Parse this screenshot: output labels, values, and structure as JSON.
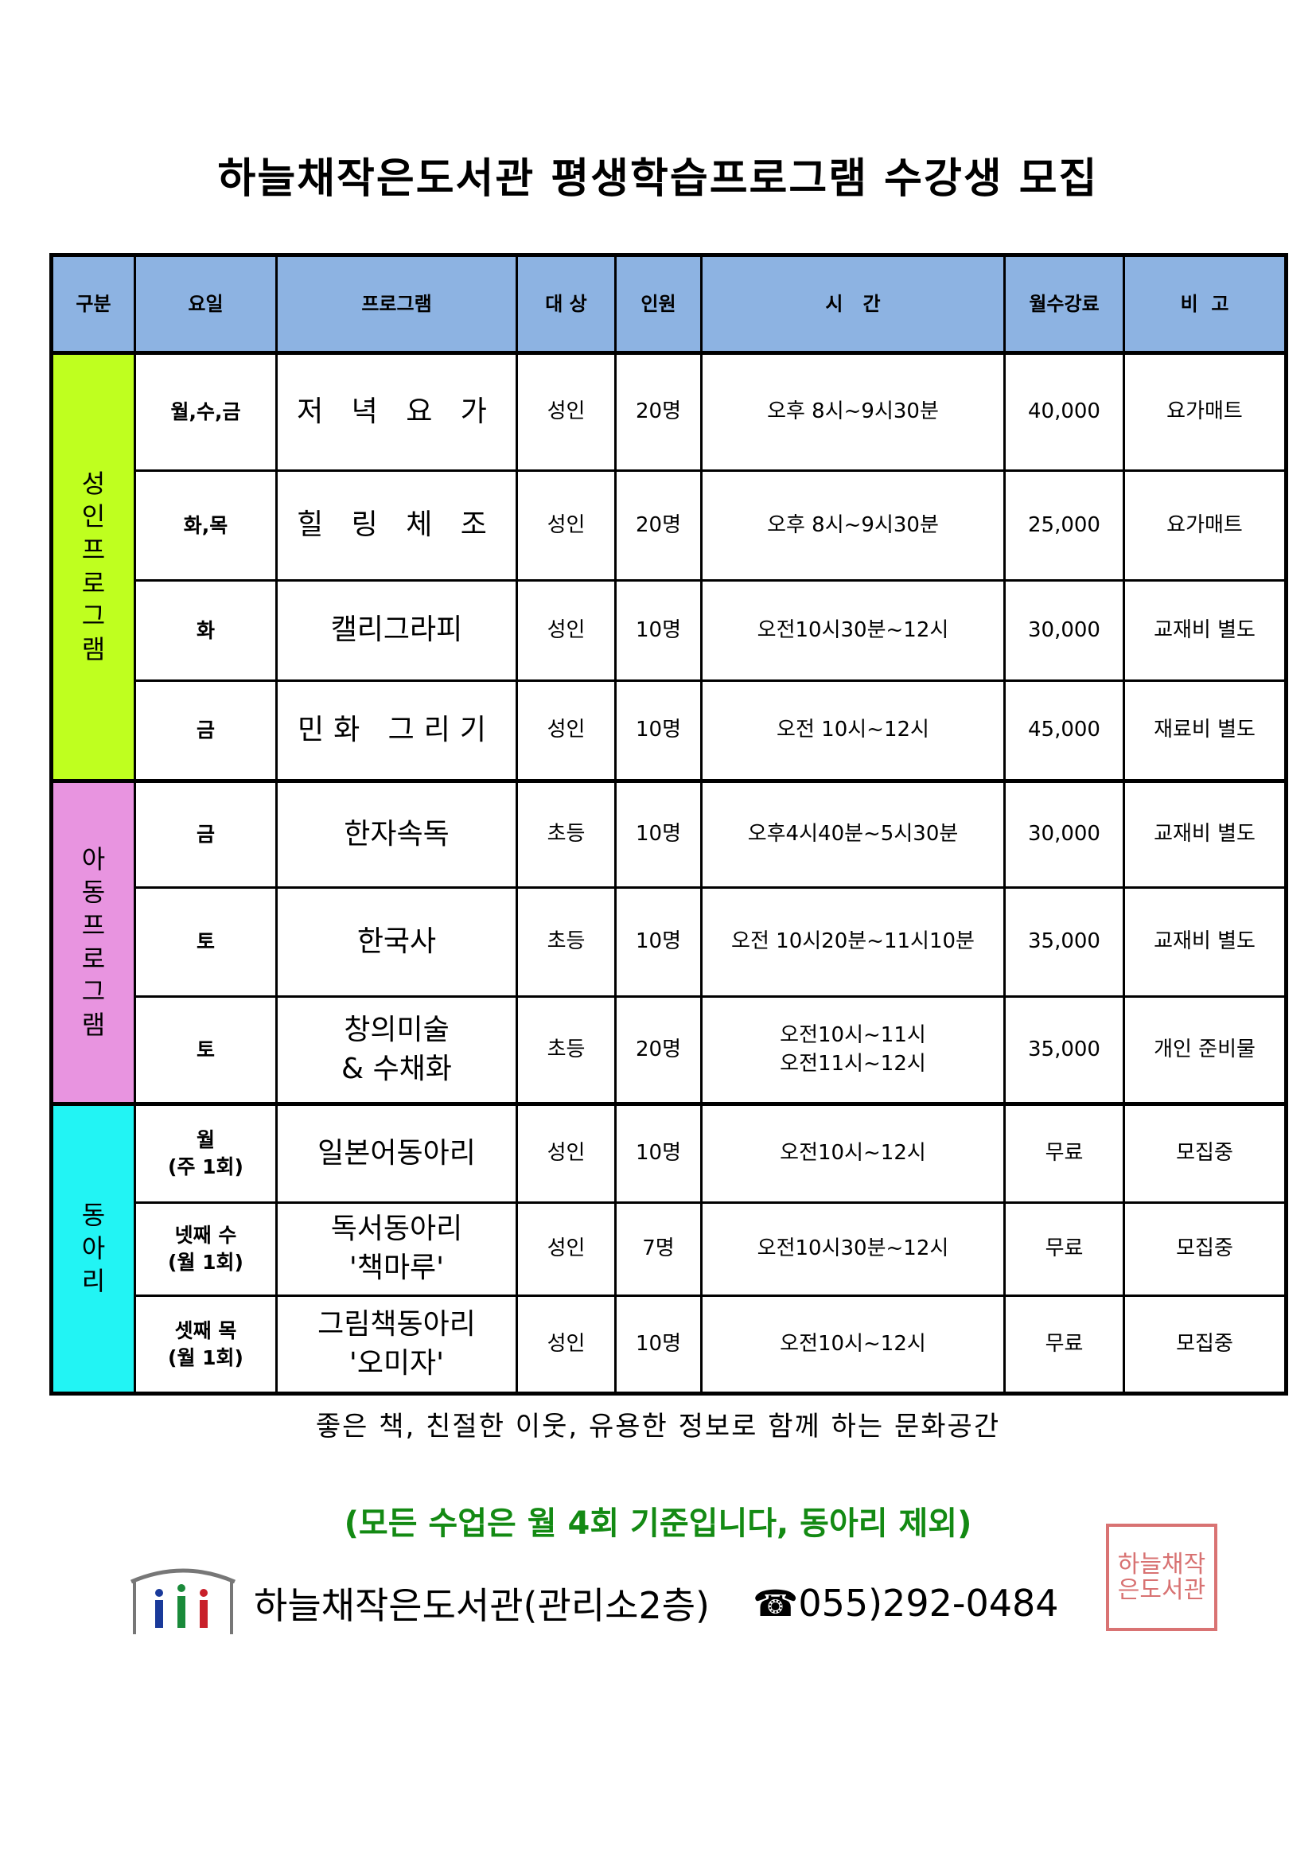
{
  "title": "하늘채작은도서관 평생학습프로그램 수강생 모집",
  "table": {
    "headers": [
      "구분",
      "요일",
      "프로그램",
      "대 상",
      "인원",
      "시   간",
      "월수강료",
      "비  고"
    ],
    "groups": [
      {
        "label": "성인프로그램",
        "color": "#bfff1f",
        "rows": [
          {
            "day": "월,수,금",
            "program": "저 녁 요 가",
            "target": "성인",
            "count": "20명",
            "time": "오후 8시~9시30분",
            "fee": "40,000",
            "note": "요가매트"
          },
          {
            "day": "화,목",
            "program": "힐 링 체 조",
            "target": "성인",
            "count": "20명",
            "time": "오후 8시~9시30분",
            "fee": "25,000",
            "note": "요가매트"
          },
          {
            "day": "화",
            "program": "캘리그라피",
            "target": "성인",
            "count": "10명",
            "time": "오전10시30분~12시",
            "fee": "30,000",
            "note": "교재비 별도"
          },
          {
            "day": "금",
            "program": "민화 그리기",
            "target": "성인",
            "count": "10명",
            "time": "오전 10시~12시",
            "fee": "45,000",
            "note": "재료비 별도"
          }
        ]
      },
      {
        "label": "아동프로그램",
        "color": "#e894e0",
        "rows": [
          {
            "day": "금",
            "program": "한자속독",
            "target": "초등",
            "count": "10명",
            "time": "오후4시40분~5시30분",
            "fee": "30,000",
            "note": "교재비 별도"
          },
          {
            "day": "토",
            "program": "한국사",
            "target": "초등",
            "count": "10명",
            "time": "오전 10시20분~11시10분",
            "fee": "35,000",
            "note": "교재비 별도"
          },
          {
            "day": "토",
            "program": "창의미술",
            "program2": "& 수채화",
            "target": "초등",
            "count": "20명",
            "time": "오전10시~11시",
            "time2": "오전11시~12시",
            "fee": "35,000",
            "note": "개인 준비물"
          }
        ]
      },
      {
        "label": "동아리",
        "color": "#22f4f4",
        "rows": [
          {
            "day": "월",
            "day2": "(주 1회)",
            "program": "일본어동아리",
            "target": "성인",
            "count": "10명",
            "time": "오전10시~12시",
            "fee": "무료",
            "note": "모집중"
          },
          {
            "day": "넷째 수",
            "day2": "(월 1회)",
            "program": "독서동아리",
            "program2": "'책마루'",
            "target": "성인",
            "count": "7명",
            "time": "오전10시30분~12시",
            "fee": "무료",
            "note": "모집중"
          },
          {
            "day": "셋째 목",
            "day2": "(월 1회)",
            "program": "그림책동아리",
            "program2": "'오미자'",
            "target": "성인",
            "count": "10명",
            "time": "오전10시~12시",
            "fee": "무료",
            "note": "모집중"
          }
        ]
      }
    ]
  },
  "tagline": "좋은 책, 친절한 이웃, 유용한 정보로 함께 하는 문화공간",
  "notice": "(모든 수업은 월 4회 기준입니다, 동아리 제외)",
  "notice_color": "#138a13",
  "footer": {
    "logo_icon": "library-logo-icon",
    "name": "하늘채작은도서관(관리소2층)",
    "phone_icon": "☎",
    "phone": "055)292-0484",
    "seal_text": "하늘채작은도서관"
  }
}
